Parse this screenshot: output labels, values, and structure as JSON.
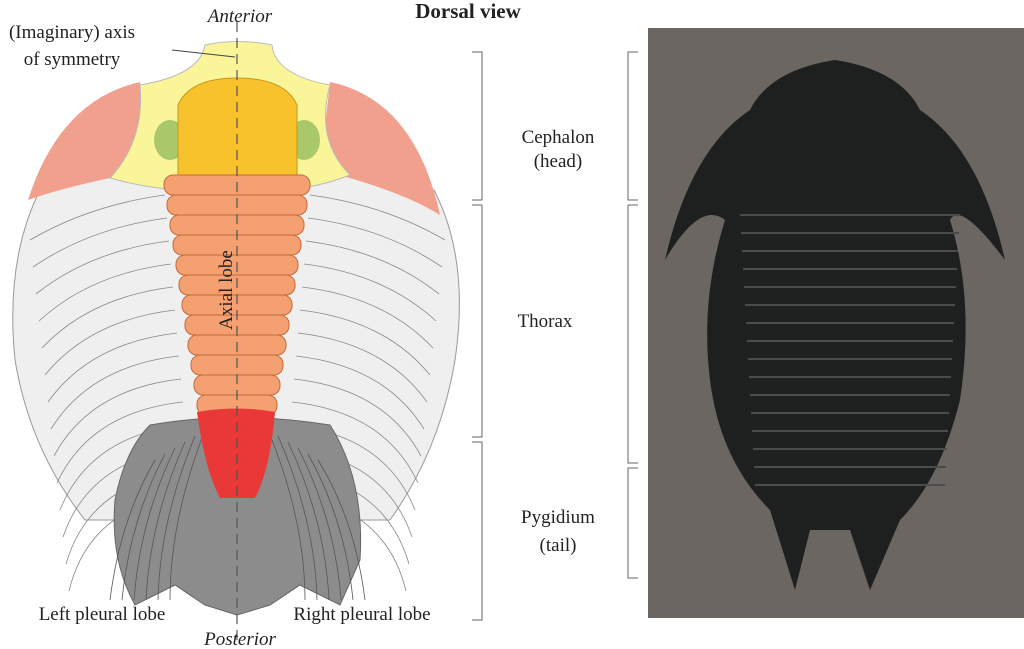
{
  "title": "Dorsal view",
  "labels": {
    "anterior": "Anterior",
    "posterior": "Posterior",
    "axis": [
      "(Imaginary) axis",
      "of symmetry"
    ],
    "axial_lobe": "Axial lobe",
    "left_pleural": "Left pleural lobe",
    "right_pleural": "Right pleural lobe"
  },
  "regions": [
    [
      "Cephalon",
      "(head)"
    ],
    [
      "Thorax"
    ],
    [
      "Pygidium",
      "(tail)"
    ]
  ]
}
